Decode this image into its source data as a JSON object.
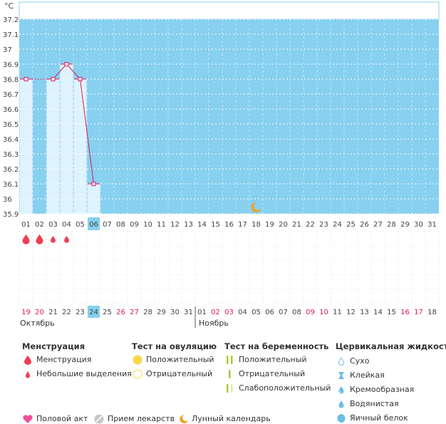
{
  "chart_data": {
    "type": "line",
    "ylabel": "°C",
    "ylim": [
      35.9,
      37.2
    ],
    "yticks": [
      "35.9",
      "36",
      "36.1",
      "36.2",
      "36.3",
      "36.4",
      "36.5",
      "36.6",
      "36.7",
      "36.8",
      "36.9",
      "37",
      "37.1",
      "37.2"
    ],
    "cycle_days": [
      "01",
      "02",
      "03",
      "04",
      "05",
      "06",
      "07",
      "08",
      "09",
      "10",
      "11",
      "12",
      "13",
      "14",
      "15",
      "16",
      "17",
      "18",
      "19",
      "20",
      "21",
      "22",
      "23",
      "24",
      "25",
      "26",
      "27",
      "28",
      "29",
      "30",
      "31"
    ],
    "current_day_index": 5,
    "temperatures": [
      36.8,
      null,
      36.8,
      36.9,
      36.8,
      36.1
    ],
    "bars_present": [
      true,
      false,
      true,
      true,
      true,
      true
    ],
    "moon_day_index": 17,
    "menstruation": [
      "heavy",
      "heavy",
      "light",
      "light"
    ],
    "dates": [
      "19",
      "20",
      "21",
      "22",
      "23",
      "24",
      "25",
      "26",
      "27",
      "28",
      "29",
      "30",
      "31",
      "01",
      "02",
      "03",
      "04",
      "05",
      "06",
      "07",
      "08",
      "09",
      "10",
      "11",
      "12",
      "13",
      "14",
      "15",
      "16",
      "17",
      "18"
    ],
    "date_weekend": [
      true,
      true,
      false,
      false,
      false,
      false,
      false,
      true,
      true,
      false,
      false,
      false,
      false,
      false,
      true,
      true,
      false,
      false,
      false,
      false,
      false,
      true,
      true,
      false,
      false,
      false,
      false,
      false,
      true,
      true,
      false
    ],
    "month_labels": [
      "Октябрь",
      "Ноябрь"
    ],
    "grid": true
  },
  "legend": {
    "menstruation": {
      "title": "Менструация",
      "items": [
        "Менструация",
        "Небольшие выделения"
      ]
    },
    "ovulation": {
      "title": "Тест на овуляцию",
      "items": [
        "Положительный",
        "Отрицательный"
      ]
    },
    "pregnancy": {
      "title": "Тест на беременность",
      "items": [
        "Положительный",
        "Отрицательный",
        "Слабоположительный"
      ]
    },
    "cervical": {
      "title": "Цервикальная жидкость",
      "items": [
        "Сухо",
        "Клейкая",
        "Кремообразная",
        "Водянистая",
        "Яичный белок"
      ]
    },
    "other": [
      "Половой акт",
      "Прием лекарств",
      "Лунный календарь"
    ]
  },
  "colors": {
    "plot_bg": "#87d0f0",
    "bar_fill": "#dff3fd",
    "line": "#e0185a",
    "drop": "#f03e52",
    "weekend": "#e0185a",
    "highlight": "#87d0f0",
    "ovulation_pos": "#f8d84a",
    "preg_green": "#a7c93c",
    "cervical_blue": "#6bbde8",
    "heart": "#ee4f9a",
    "moon": "#f0a020"
  }
}
